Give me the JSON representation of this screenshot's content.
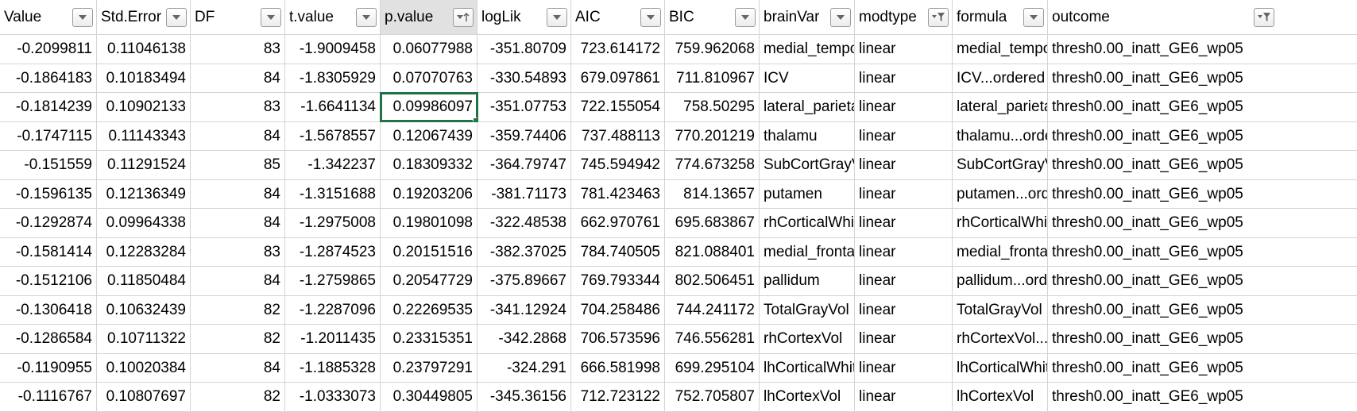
{
  "columns": [
    {
      "label": "Value",
      "align": "num",
      "filter": "dropdown"
    },
    {
      "label": "Std.Error",
      "align": "num",
      "filter": "dropdown"
    },
    {
      "label": "DF",
      "align": "num",
      "filter": "dropdown"
    },
    {
      "label": "t.value",
      "align": "num",
      "filter": "dropdown"
    },
    {
      "label": "p.value",
      "align": "num",
      "filter": "sorted-ascending"
    },
    {
      "label": "logLik",
      "align": "num",
      "filter": "dropdown"
    },
    {
      "label": "AIC",
      "align": "num",
      "filter": "dropdown"
    },
    {
      "label": "BIC",
      "align": "num",
      "filter": "dropdown"
    },
    {
      "label": "brainVar",
      "align": "txt",
      "filter": "dropdown"
    },
    {
      "label": "modtype",
      "align": "txt",
      "filter": "filtered"
    },
    {
      "label": "formula",
      "align": "txt",
      "filter": "dropdown"
    },
    {
      "label": "outcome",
      "align": "txt",
      "filter": "filtered"
    }
  ],
  "rows": [
    [
      "-0.2099811",
      "0.11046138",
      "83",
      "-1.9009458",
      "0.06077988",
      "-351.80709",
      "723.614172",
      "759.962068",
      "medial_temporal",
      "linear",
      "medial_temporal",
      "thresh0.00_inatt_GE6_wp05"
    ],
    [
      "-0.1864183",
      "0.10183494",
      "84",
      "-1.8305929",
      "0.07070763",
      "-330.54893",
      "679.097861",
      "711.810967",
      "ICV",
      "linear",
      "ICV...ordered",
      "thresh0.00_inatt_GE6_wp05"
    ],
    [
      "-0.1814239",
      "0.10902133",
      "83",
      "-1.6641134",
      "0.09986097",
      "-351.07753",
      "722.155054",
      "758.50295",
      "lateral_parietal",
      "linear",
      "lateral_parietal",
      "thresh0.00_inatt_GE6_wp05"
    ],
    [
      "-0.1747115",
      "0.11143343",
      "84",
      "-1.5678557",
      "0.12067439",
      "-359.74406",
      "737.488113",
      "770.201219",
      "thalamu",
      "linear",
      "thalamu...ordered",
      "thresh0.00_inatt_GE6_wp05"
    ],
    [
      "-0.151559",
      "0.11291524",
      "85",
      "-1.342237",
      "0.18309332",
      "-364.79747",
      "745.594942",
      "774.673258",
      "SubCortGrayVol",
      "linear",
      "SubCortGrayVol",
      "thresh0.00_inatt_GE6_wp05"
    ],
    [
      "-0.1596135",
      "0.12136349",
      "84",
      "-1.3151688",
      "0.19203206",
      "-381.71173",
      "781.423463",
      "814.13657",
      "putamen",
      "linear",
      "putamen...ordered",
      "thresh0.00_inatt_GE6_wp05"
    ],
    [
      "-0.1292874",
      "0.09964338",
      "84",
      "-1.2975008",
      "0.19801098",
      "-322.48538",
      "662.970761",
      "695.683867",
      "rhCorticalWhiteMatterVol",
      "linear",
      "rhCorticalWhiteMatterVol",
      "thresh0.00_inatt_GE6_wp05"
    ],
    [
      "-0.1581414",
      "0.12283284",
      "83",
      "-1.2874523",
      "0.20151516",
      "-382.37025",
      "784.740505",
      "821.088401",
      "medial_frontal",
      "linear",
      "medial_frontal",
      "thresh0.00_inatt_GE6_wp05"
    ],
    [
      "-0.1512106",
      "0.11850484",
      "84",
      "-1.2759865",
      "0.20547729",
      "-375.89667",
      "769.793344",
      "802.506451",
      "pallidum",
      "linear",
      "pallidum...ordered",
      "thresh0.00_inatt_GE6_wp05"
    ],
    [
      "-0.1306418",
      "0.10632439",
      "82",
      "-1.2287096",
      "0.22269535",
      "-341.12924",
      "704.258486",
      "744.241172",
      "TotalGrayVol",
      "linear",
      "TotalGrayVol",
      "thresh0.00_inatt_GE6_wp05"
    ],
    [
      "-0.1286584",
      "0.10711322",
      "82",
      "-1.2011435",
      "0.23315351",
      "-342.2868",
      "706.573596",
      "746.556281",
      "rhCortexVol",
      "linear",
      "rhCortexVol...ordered",
      "thresh0.00_inatt_GE6_wp05"
    ],
    [
      "-0.1190955",
      "0.10020384",
      "84",
      "-1.1885328",
      "0.23797291",
      "-324.291",
      "666.581998",
      "699.295104",
      "lhCorticalWhiteMatterVol",
      "linear",
      "lhCorticalWhiteMatterVol",
      "thresh0.00_inatt_GE6_wp05"
    ],
    [
      "-0.1116767",
      "0.10807697",
      "82",
      "-1.0333073",
      "0.30449805",
      "-345.36156",
      "712.723122",
      "752.705807",
      "lhCortexVol",
      "linear",
      "lhCortexVol",
      "thresh0.00_inatt_GE6_wp05"
    ]
  ],
  "selection": {
    "row": 2,
    "col": 4
  },
  "colors": {
    "selection_border": "#217346",
    "gridline": "#d4d4d4",
    "active_header": "#e1e1e1"
  }
}
